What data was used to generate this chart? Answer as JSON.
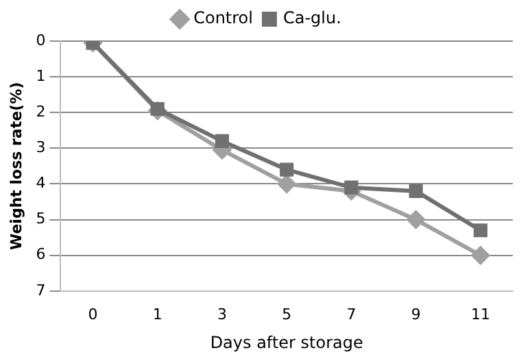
{
  "chart_data": {
    "type": "line",
    "xlabel": "Days after storage",
    "ylabel": "Weight loss rate(%)",
    "categories": [
      "0",
      "1",
      "3",
      "5",
      "7",
      "9",
      "11"
    ],
    "series": [
      {
        "name": "Control",
        "color": "#a0a0a0",
        "marker": "diamond",
        "values": [
          0.05,
          1.95,
          3.05,
          4.0,
          4.2,
          5.0,
          6.0
        ]
      },
      {
        "name": "Ca-glu.",
        "color": "#707070",
        "marker": "square",
        "values": [
          0.05,
          1.9,
          2.8,
          3.6,
          4.1,
          4.2,
          5.3
        ]
      }
    ],
    "ylim": [
      7,
      0
    ],
    "yticks": [
      0,
      1,
      2,
      3,
      4,
      5,
      6,
      7
    ],
    "grid": "y",
    "legend": "top"
  }
}
